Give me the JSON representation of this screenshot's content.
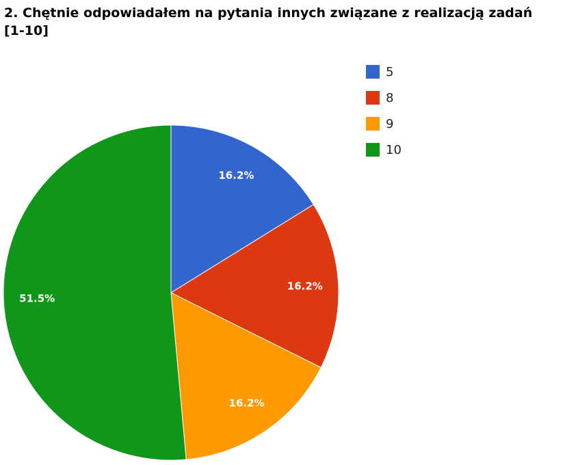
{
  "chart_data": {
    "type": "pie",
    "title": "2. Chętnie odpowiadałem na pytania innych związane z realizacją zadań [1-10]",
    "categories": [
      "5",
      "8",
      "9",
      "10"
    ],
    "values": [
      16.2,
      16.2,
      16.2,
      51.5
    ],
    "value_labels": [
      "16.2%",
      "16.2%",
      "16.2%",
      "51.5%"
    ],
    "colors": [
      "#3366cc",
      "#dc3912",
      "#ff9900",
      "#109618"
    ],
    "legend": "right"
  }
}
